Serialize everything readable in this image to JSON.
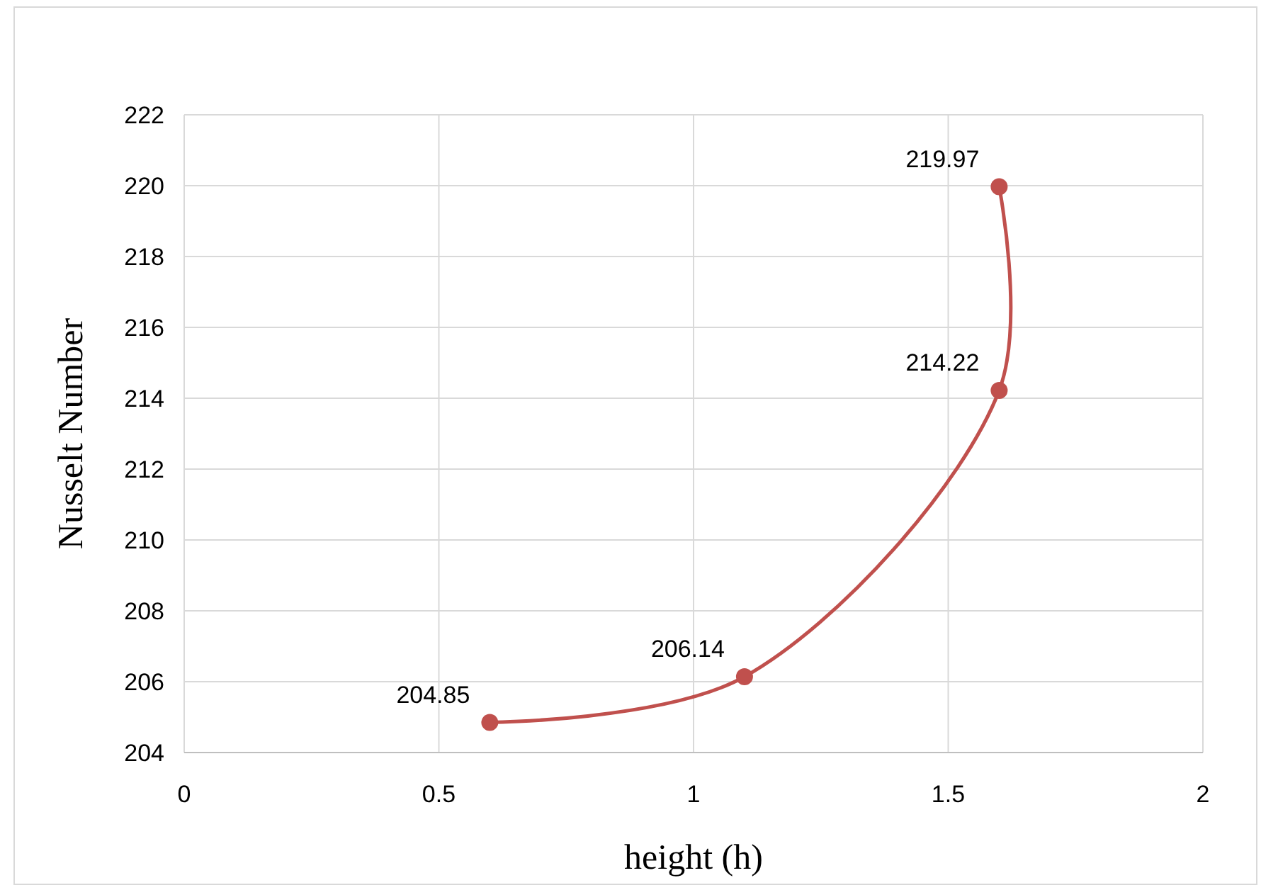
{
  "chart_data": {
    "type": "line",
    "xlabel": "height (h)",
    "ylabel": "Nusselt Number",
    "x": [
      0.6,
      1.1,
      1.6,
      1.6
    ],
    "series": [
      {
        "color": "#c0504d",
        "values": [
          204.85,
          206.14,
          214.22,
          219.97
        ]
      }
    ],
    "xlim": [
      0,
      2
    ],
    "xticks": [
      0,
      0.5,
      1,
      1.5,
      2
    ],
    "ylim": [
      204,
      222
    ],
    "yticks": [
      204,
      206,
      208,
      210,
      212,
      214,
      216,
      218,
      220,
      222
    ],
    "grid": true,
    "marker": "circle",
    "line_style": "solid",
    "data_labels": true
  }
}
